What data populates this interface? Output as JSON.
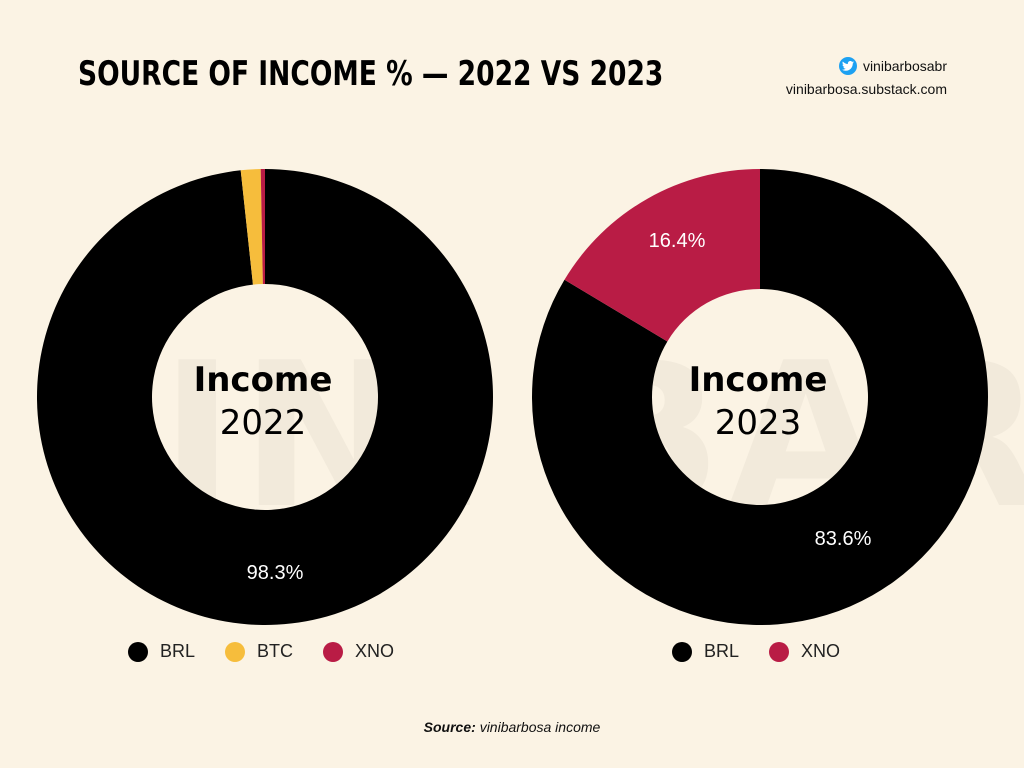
{
  "header": {
    "title": "SOURCE OF INCOME % — 2022 VS 2023",
    "twitter_handle": "vinibarbosabr",
    "website": "vinibarbosa.substack.com"
  },
  "footer": {
    "source_label": "Source:",
    "source_text": "vinibarbosa income"
  },
  "colors": {
    "background": "#fbf3e4",
    "BRL": "#000000",
    "BTC": "#f6bd3c",
    "XNO": "#b91c45"
  },
  "chart_data": [
    {
      "type": "pie",
      "donut": true,
      "center_title": "Income",
      "center_subtitle": "2022",
      "slices": [
        {
          "label": "BRL",
          "value": 98.3,
          "data_label": "98.3%"
        },
        {
          "label": "BTC",
          "value": 1.4,
          "data_label": ""
        },
        {
          "label": "XNO",
          "value": 0.3,
          "data_label": ""
        }
      ],
      "legend": [
        "BRL",
        "BTC",
        "XNO"
      ],
      "legend_position": "bottom"
    },
    {
      "type": "pie",
      "donut": true,
      "center_title": "Income",
      "center_subtitle": "2023",
      "slices": [
        {
          "label": "BRL",
          "value": 83.6,
          "data_label": "83.6%"
        },
        {
          "label": "XNO",
          "value": 16.4,
          "data_label": "16.4%"
        }
      ],
      "legend": [
        "BRL",
        "XNO"
      ],
      "legend_position": "bottom"
    }
  ]
}
